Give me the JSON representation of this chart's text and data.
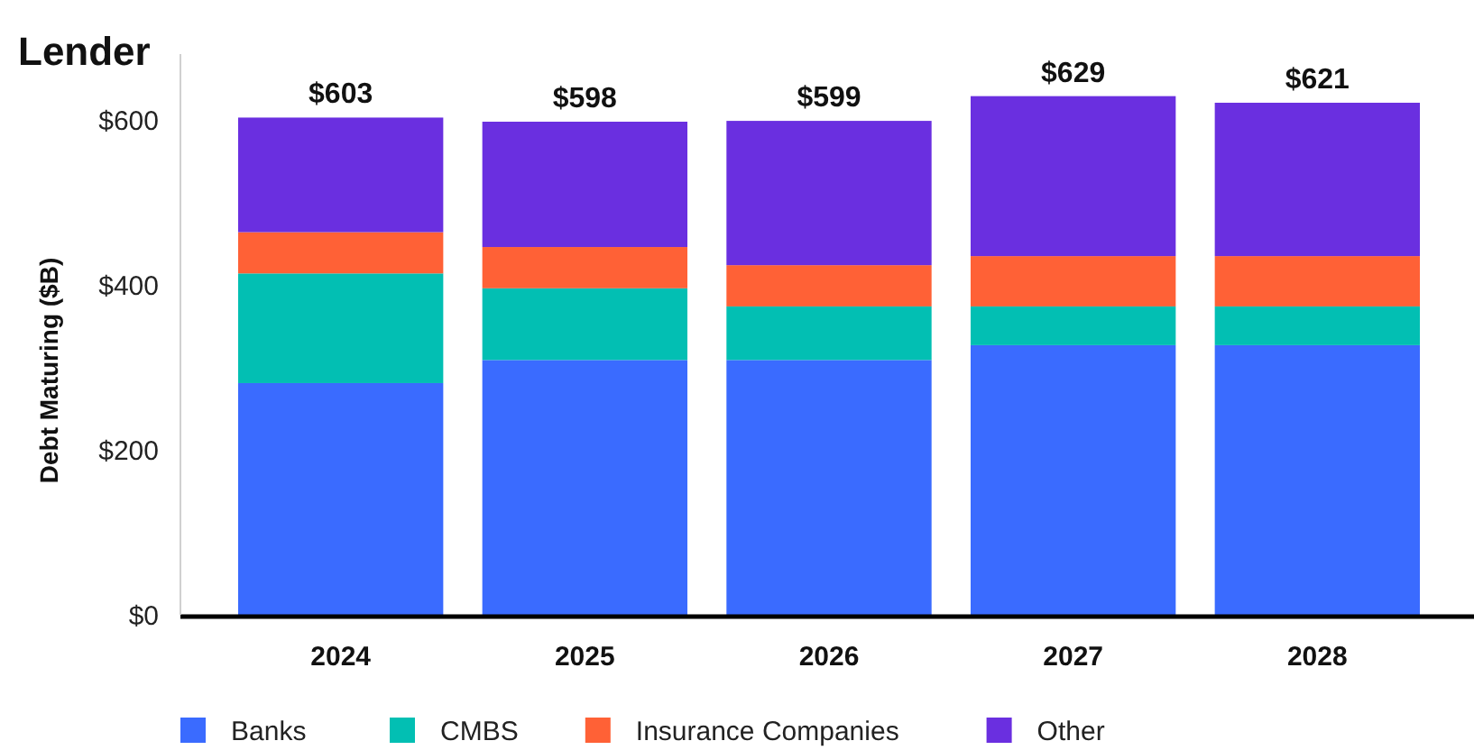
{
  "chart_data": {
    "type": "bar",
    "title": "Lender",
    "ylabel": "Debt Maturing ($B)",
    "categories": [
      "2024",
      "2025",
      "2026",
      "2027",
      "2028"
    ],
    "stacked": true,
    "series": [
      {
        "name": "Banks",
        "color": "#3a6bff",
        "values": [
          281,
          309,
          309,
          327,
          327
        ]
      },
      {
        "name": "CMBS",
        "color": "#02bfb3",
        "values": [
          133,
          87,
          65,
          47,
          47
        ]
      },
      {
        "name": "Insurance Companies",
        "color": "#ff6136",
        "values": [
          50,
          50,
          50,
          61,
          61
        ]
      },
      {
        "name": "Other",
        "color": "#6a2fe0",
        "values": [
          139,
          152,
          175,
          194,
          186
        ]
      }
    ],
    "totals": [
      "$603",
      "$598",
      "$599",
      "$629",
      "$621"
    ],
    "ylim": [
      0,
      680
    ],
    "yticks": [
      {
        "value": 0,
        "label": "$0"
      },
      {
        "value": 200,
        "label": "$200"
      },
      {
        "value": 400,
        "label": "$400"
      },
      {
        "value": 600,
        "label": "$600"
      }
    ],
    "grid": false,
    "legend": "bottom"
  }
}
